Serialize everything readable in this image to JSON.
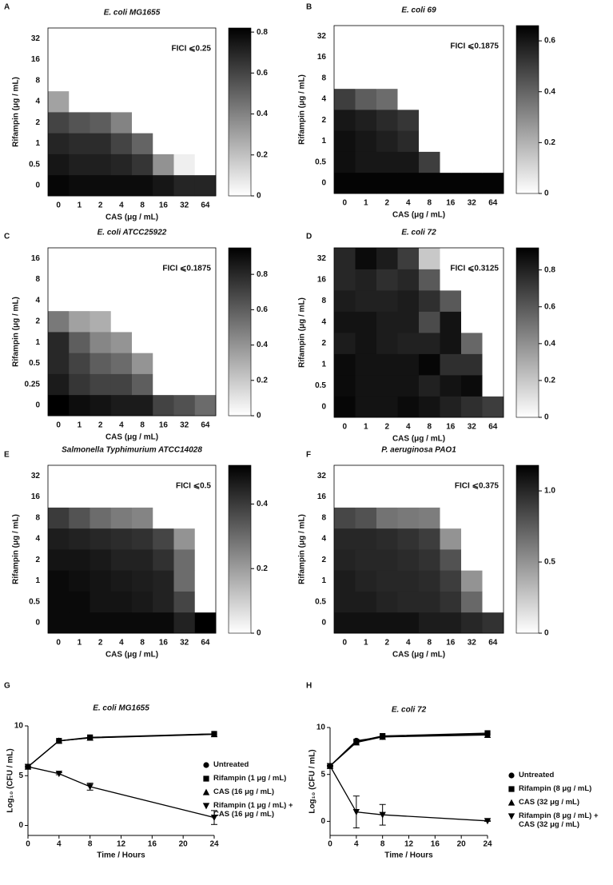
{
  "chart_data": [
    {
      "type": "heatmap",
      "panel": "A",
      "title": "E. coli MG1655",
      "annotation": "FICI ⩽0.25",
      "xlabel": "CAS (μg / mL)",
      "ylabel": "Rifampin (μg / mL)",
      "categories": [
        "0",
        "1",
        "2",
        "4",
        "8",
        "16",
        "32",
        "64"
      ],
      "y_categories": [
        "0",
        "0.5",
        "1",
        "2",
        "4",
        "8",
        "16",
        "32"
      ],
      "z": [
        [
          0.8,
          0.78,
          0.78,
          0.78,
          0.78,
          0.75,
          0.7,
          0.7
        ],
        [
          0.75,
          0.72,
          0.72,
          0.7,
          0.65,
          0.35,
          0.05,
          0
        ],
        [
          0.7,
          0.68,
          0.68,
          0.6,
          0.5,
          0,
          0,
          0
        ],
        [
          0.6,
          0.55,
          0.52,
          0.4,
          0,
          0,
          0,
          0
        ],
        [
          0.3,
          0,
          0,
          0,
          0,
          0,
          0,
          0
        ],
        [
          0,
          0,
          0,
          0,
          0,
          0,
          0,
          0
        ],
        [
          0,
          0,
          0,
          0,
          0,
          0,
          0,
          0
        ],
        [
          0,
          0,
          0,
          0,
          0,
          0,
          0,
          0
        ]
      ],
      "zlim": [
        0,
        0.82
      ],
      "zticks": [
        0,
        0.2,
        0.4,
        0.6,
        0.8
      ]
    },
    {
      "type": "heatmap",
      "panel": "B",
      "title": "E. coli 69",
      "annotation": "FICI ⩽0.1875",
      "xlabel": "CAS (μg / mL)",
      "ylabel": "Rifampin (μg / mL)",
      "categories": [
        "0",
        "1",
        "2",
        "4",
        "8",
        "16",
        "32",
        "64"
      ],
      "y_categories": [
        "0",
        "0.5",
        "1",
        "2",
        "4",
        "8",
        "16",
        "32"
      ],
      "z": [
        [
          0.65,
          0.65,
          0.65,
          0.65,
          0.65,
          0.65,
          0.65,
          0.65
        ],
        [
          0.62,
          0.6,
          0.6,
          0.6,
          0.5,
          0,
          0,
          0
        ],
        [
          0.62,
          0.6,
          0.58,
          0.55,
          0,
          0,
          0,
          0
        ],
        [
          0.6,
          0.58,
          0.55,
          0.52,
          0,
          0,
          0,
          0
        ],
        [
          0.5,
          0.42,
          0.38,
          0,
          0,
          0,
          0,
          0
        ],
        [
          0,
          0,
          0,
          0,
          0,
          0,
          0,
          0
        ],
        [
          0,
          0,
          0,
          0,
          0,
          0,
          0,
          0
        ],
        [
          0,
          0,
          0,
          0,
          0,
          0,
          0,
          0
        ]
      ],
      "zlim": [
        0,
        0.66
      ],
      "zticks": [
        0,
        0.2,
        0.4,
        0.6
      ]
    },
    {
      "type": "heatmap",
      "panel": "C",
      "title": "E. coli ATCC25922",
      "annotation": "FICI ⩽0.1875",
      "xlabel": "CAS (μg / mL)",
      "ylabel": "Rifampin (μg / mL)",
      "categories": [
        "0",
        "1",
        "2",
        "4",
        "8",
        "16",
        "32",
        "64"
      ],
      "y_categories": [
        "0",
        "0.25",
        "0.5",
        "1",
        "2",
        "4",
        "8",
        "16"
      ],
      "z": [
        [
          0.95,
          0.9,
          0.88,
          0.85,
          0.85,
          0.7,
          0.65,
          0.55
        ],
        [
          0.85,
          0.75,
          0.7,
          0.7,
          0.6,
          0,
          0,
          0
        ],
        [
          0.8,
          0.7,
          0.6,
          0.55,
          0.4,
          0,
          0,
          0
        ],
        [
          0.8,
          0.6,
          0.45,
          0.4,
          0,
          0,
          0,
          0
        ],
        [
          0.5,
          0.35,
          0.3,
          0,
          0,
          0,
          0,
          0
        ],
        [
          0,
          0,
          0,
          0,
          0,
          0,
          0,
          0
        ],
        [
          0,
          0,
          0,
          0,
          0,
          0,
          0,
          0
        ],
        [
          0,
          0,
          0,
          0,
          0,
          0,
          0,
          0
        ]
      ],
      "zlim": [
        0,
        0.95
      ],
      "zticks": [
        0,
        0.2,
        0.4,
        0.6,
        0.8
      ]
    },
    {
      "type": "heatmap",
      "panel": "D",
      "title": "E. coli 72",
      "annotation": "FICI ⩽0.3125",
      "xlabel": "CAS (μg / mL)",
      "ylabel": "Rifampin (μg / mL)",
      "categories": [
        "0",
        "1",
        "2",
        "4",
        "8",
        "16",
        "32",
        "64"
      ],
      "y_categories": [
        "0",
        "0.5",
        "1",
        "2",
        "4",
        "8",
        "16",
        "32"
      ],
      "z": [
        [
          0.9,
          0.85,
          0.85,
          0.88,
          0.85,
          0.8,
          0.75,
          0.7
        ],
        [
          0.88,
          0.85,
          0.85,
          0.85,
          0.8,
          0.85,
          0.88,
          0
        ],
        [
          0.88,
          0.85,
          0.85,
          0.85,
          0.9,
          0.75,
          0.75,
          0
        ],
        [
          0.82,
          0.85,
          0.82,
          0.8,
          0.8,
          0.85,
          0.55,
          0
        ],
        [
          0.85,
          0.85,
          0.82,
          0.82,
          0.65,
          0.85,
          0,
          0
        ],
        [
          0.82,
          0.8,
          0.8,
          0.82,
          0.75,
          0.6,
          0,
          0
        ],
        [
          0.78,
          0.8,
          0.75,
          0.78,
          0.6,
          0,
          0,
          0
        ],
        [
          0.78,
          0.88,
          0.82,
          0.7,
          0.2,
          0,
          0,
          0
        ]
      ],
      "zlim": [
        0,
        0.92
      ],
      "zticks": [
        0,
        0.2,
        0.4,
        0.6,
        0.8
      ]
    },
    {
      "type": "heatmap",
      "panel": "E",
      "title": "Salmonella Typhimurium ATCC14028",
      "annotation": "FICI ⩽0.5",
      "xlabel": "CAS (μg / mL)",
      "ylabel": "Rifampin (μg / mL)",
      "categories": [
        "0",
        "1",
        "2",
        "4",
        "8",
        "16",
        "32",
        "64"
      ],
      "y_categories": [
        "0",
        "0.5",
        "1",
        "2",
        "4",
        "8",
        "16",
        "32"
      ],
      "z": [
        [
          0.5,
          0.5,
          0.5,
          0.5,
          0.5,
          0.5,
          0.45,
          0.52
        ],
        [
          0.5,
          0.5,
          0.48,
          0.48,
          0.47,
          0.45,
          0.38,
          0
        ],
        [
          0.5,
          0.49,
          0.48,
          0.47,
          0.46,
          0.45,
          0.3,
          0
        ],
        [
          0.48,
          0.48,
          0.47,
          0.45,
          0.45,
          0.42,
          0.3,
          0
        ],
        [
          0.46,
          0.45,
          0.44,
          0.43,
          0.42,
          0.38,
          0.22,
          0
        ],
        [
          0.4,
          0.35,
          0.3,
          0.27,
          0.25,
          0,
          0,
          0
        ],
        [
          0,
          0,
          0,
          0,
          0,
          0,
          0,
          0
        ],
        [
          0,
          0,
          0,
          0,
          0,
          0,
          0,
          0
        ]
      ],
      "zlim": [
        0,
        0.52
      ],
      "zticks": [
        0,
        0.2,
        0.4
      ]
    },
    {
      "type": "heatmap",
      "panel": "F",
      "title": "P. aeruginosa PAO1",
      "annotation": "FICI ⩽0.375",
      "xlabel": "CAS (μg / mL)",
      "ylabel": "Rifampin (μg / mL)",
      "categories": [
        "0",
        "1",
        "2",
        "4",
        "8",
        "16",
        "32",
        "64"
      ],
      "y_categories": [
        "0",
        "0.5",
        "1",
        "2",
        "4",
        "8",
        "16",
        "32"
      ],
      "z": [
        [
          1.1,
          1.1,
          1.1,
          1.1,
          1.05,
          1.05,
          1.0,
          0.95
        ],
        [
          1.05,
          1.05,
          1.02,
          1.0,
          1.0,
          0.95,
          0.7,
          0
        ],
        [
          1.05,
          1.02,
          1.0,
          1.0,
          0.98,
          0.9,
          0.5,
          0
        ],
        [
          1.02,
          1.0,
          1.0,
          0.98,
          0.95,
          0.8,
          0,
          0
        ],
        [
          1.0,
          1.0,
          0.98,
          0.95,
          0.9,
          0.5,
          0,
          0
        ],
        [
          0.85,
          0.8,
          0.65,
          0.62,
          0.6,
          0,
          0,
          0
        ],
        [
          0,
          0,
          0,
          0,
          0,
          0,
          0,
          0
        ],
        [
          0,
          0,
          0,
          0,
          0,
          0,
          0,
          0
        ]
      ],
      "zlim": [
        0,
        1.18
      ],
      "zticks": [
        0,
        0.5,
        {
          "value": 1,
          "label": "1.0"
        }
      ]
    },
    {
      "type": "line",
      "panel": "G",
      "title": "E. coli MG1655",
      "xlabel": "Time / Hours",
      "ylabel": "Log₁₀ (CFU / mL)",
      "x": [
        0,
        4,
        8,
        24
      ],
      "xlim": [
        0,
        24
      ],
      "xticks": [
        0,
        4,
        8,
        12,
        16,
        20,
        24
      ],
      "ylim": [
        -1,
        10
      ],
      "yticks": [
        0,
        5,
        10
      ],
      "series": [
        {
          "name": "Untreated",
          "color": "#000000",
          "marker": "circle",
          "values": [
            5.9,
            8.5,
            8.8,
            9.2
          ]
        },
        {
          "name": "Rifampin (1 μg / mL)",
          "color": "#000000",
          "marker": "square",
          "values": [
            5.9,
            8.5,
            8.85,
            9.2
          ]
        },
        {
          "name": "CAS (16 μg / mL)",
          "color": "#000000",
          "marker": "triangle-up",
          "values": [
            5.9,
            8.5,
            8.8,
            9.15
          ]
        },
        {
          "name": "Rifampin (1 μg / mL) + CAS (16 μg / mL)",
          "color": "#000000",
          "marker": "triangle-down",
          "values": [
            5.9,
            5.2,
            3.9,
            0.8
          ],
          "errors": [
            0,
            0.1,
            0.35,
            0.7
          ]
        }
      ]
    },
    {
      "type": "line",
      "panel": "H",
      "title": "E. coli 72",
      "xlabel": "Time / Hours",
      "ylabel": "Log₁₀ (CFU / mL)",
      "x": [
        0,
        4,
        8,
        24
      ],
      "xlim": [
        0,
        24
      ],
      "xticks": [
        0,
        4,
        8,
        12,
        16,
        20,
        24
      ],
      "ylim": [
        -1.5,
        10
      ],
      "yticks": [
        0,
        5,
        10
      ],
      "series": [
        {
          "name": "Untreated",
          "color": "#000000",
          "marker": "circle",
          "values": [
            5.9,
            8.6,
            9.0,
            9.3
          ]
        },
        {
          "name": "Rifampin (8 μg / mL)",
          "color": "#000000",
          "marker": "square",
          "values": [
            5.9,
            8.5,
            9.1,
            9.4
          ]
        },
        {
          "name": "CAS (32 μg / mL)",
          "color": "#000000",
          "marker": "triangle-up",
          "values": [
            5.9,
            8.4,
            9.0,
            9.2
          ]
        },
        {
          "name": "Rifampin (8 μg / mL) + CAS (32 μg / mL)",
          "color": "#000000",
          "marker": "triangle-down",
          "values": [
            5.9,
            1.0,
            0.7,
            0.05
          ],
          "errors": [
            0.05,
            1.7,
            1.1,
            0.05
          ]
        }
      ]
    }
  ]
}
